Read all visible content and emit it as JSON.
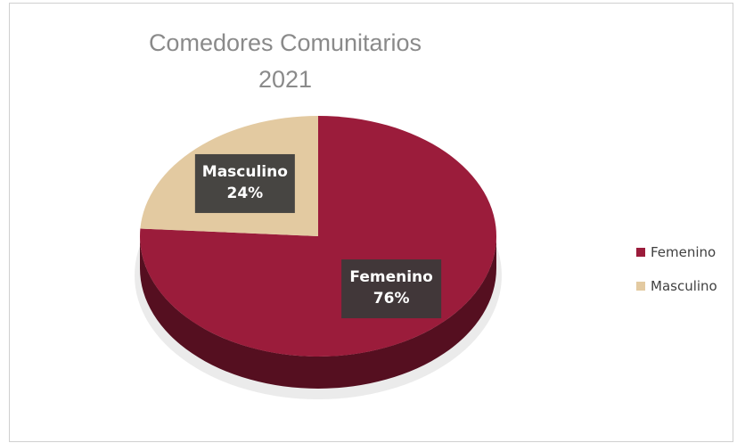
{
  "chart_data": {
    "type": "pie",
    "title": [
      "Comedores Comunitarios",
      "2021"
    ],
    "categories": [
      "Femenino",
      "Masculino"
    ],
    "values": [
      76,
      24
    ],
    "value_labels": [
      "76%",
      "24%"
    ],
    "colors": [
      "#9b1c3b",
      "#e3caa1"
    ],
    "legend": "right"
  }
}
